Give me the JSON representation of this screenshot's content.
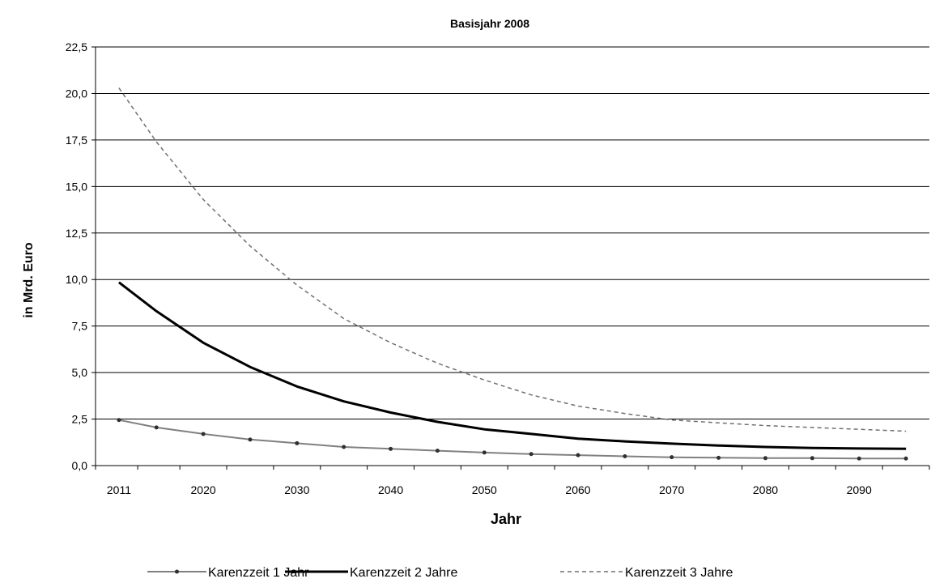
{
  "chart_data": {
    "type": "line",
    "title": "Basisjahr 2008",
    "xlabel": "Jahr",
    "ylabel": "in Mrd. Euro",
    "x": [
      2011,
      2015,
      2020,
      2025,
      2030,
      2035,
      2040,
      2045,
      2050,
      2055,
      2060,
      2065,
      2070,
      2075,
      2080,
      2085,
      2090,
      2095
    ],
    "x_tick_labels": [
      "2011",
      "2020",
      "2030",
      "2040",
      "2050",
      "2060",
      "2070",
      "2080",
      "2090"
    ],
    "y_tick_labels": [
      "0,0",
      "2,5",
      "5,0",
      "7,5",
      "10,0",
      "12,5",
      "15,0",
      "17,5",
      "20,0",
      "22,5"
    ],
    "ylim": [
      0,
      22.5
    ],
    "grid": "horizontal",
    "legend_position": "bottom",
    "series": [
      {
        "name": "Karenzzeit 1 Jahr",
        "color": "#808080",
        "style": "solid-markers",
        "values": [
          2.45,
          2.05,
          1.7,
          1.4,
          1.2,
          1.0,
          0.9,
          0.8,
          0.7,
          0.62,
          0.56,
          0.5,
          0.45,
          0.42,
          0.4,
          0.4,
          0.38,
          0.38
        ]
      },
      {
        "name": "Karenzzeit 2 Jahre",
        "color": "#000000",
        "style": "solid-thick",
        "values": [
          9.85,
          8.3,
          6.6,
          5.3,
          4.25,
          3.45,
          2.85,
          2.35,
          1.95,
          1.7,
          1.45,
          1.3,
          1.18,
          1.08,
          1.0,
          0.95,
          0.92,
          0.9
        ]
      },
      {
        "name": "Karenzzeit 3 Jahre",
        "color": "#707070",
        "style": "dashed",
        "values": [
          20.3,
          17.4,
          14.3,
          11.8,
          9.7,
          7.9,
          6.6,
          5.5,
          4.6,
          3.8,
          3.2,
          2.8,
          2.45,
          2.3,
          2.15,
          2.05,
          1.95,
          1.85
        ]
      }
    ]
  }
}
